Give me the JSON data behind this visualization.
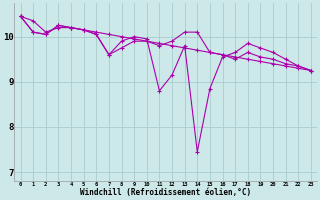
{
  "background_color": "#cce8e8",
  "grid_color": "#aacccc",
  "line_color": "#aa00aa",
  "x_label": "Windchill (Refroidissement éolien,°C)",
  "x_ticks": [
    0,
    1,
    2,
    3,
    4,
    5,
    6,
    7,
    8,
    9,
    10,
    11,
    12,
    13,
    14,
    15,
    16,
    17,
    18,
    19,
    20,
    21,
    22,
    23
  ],
  "y_ticks": [
    7,
    8,
    9,
    10
  ],
  "ylim": [
    6.8,
    10.75
  ],
  "xlim": [
    -0.5,
    23.5
  ],
  "series": [
    [
      10.45,
      10.35,
      10.1,
      10.2,
      10.2,
      10.15,
      10.1,
      10.05,
      10.0,
      9.95,
      9.9,
      9.85,
      9.8,
      9.75,
      9.7,
      9.65,
      9.6,
      9.55,
      9.5,
      9.45,
      9.4,
      9.35,
      9.3,
      9.25
    ],
    [
      10.45,
      10.1,
      10.05,
      10.25,
      10.2,
      10.15,
      10.05,
      9.6,
      9.75,
      9.9,
      9.9,
      9.8,
      9.9,
      10.1,
      10.1,
      9.65,
      9.6,
      9.5,
      9.65,
      9.55,
      9.5,
      9.4,
      9.35,
      9.25
    ],
    [
      10.45,
      10.1,
      10.05,
      10.25,
      10.2,
      10.15,
      10.05,
      9.6,
      9.9,
      10.0,
      9.95,
      8.8,
      9.15,
      9.8,
      7.45,
      8.85,
      9.55,
      9.65,
      9.85,
      9.75,
      9.65,
      9.5,
      9.35,
      9.25
    ]
  ]
}
